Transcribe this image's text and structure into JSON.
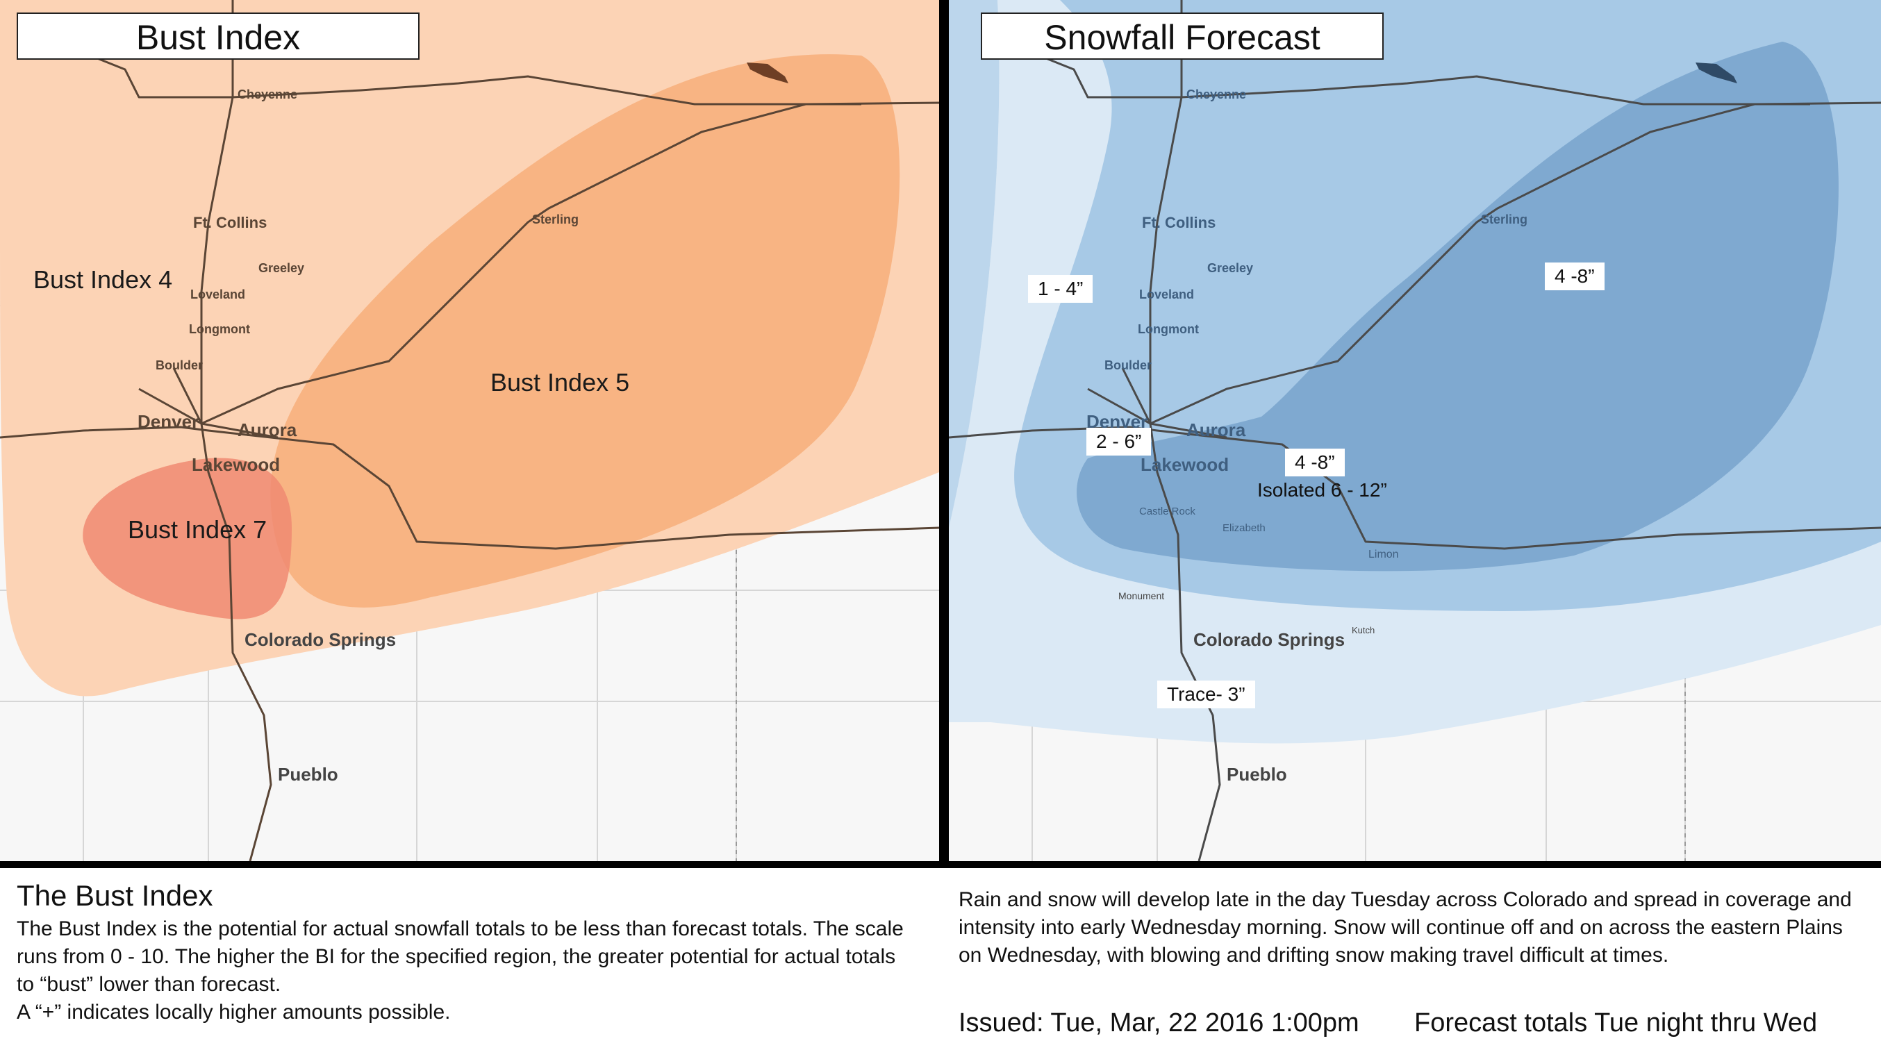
{
  "left_panel": {
    "title": "Bust Index",
    "labels": {
      "bi4": "Bust Index 4",
      "bi5": "Bust Index 5",
      "bi7": "Bust Index 7"
    }
  },
  "right_panel": {
    "title": "Snowfall Forecast",
    "amounts": {
      "a1": "1 - 4”",
      "a2": "4 -8”",
      "a3": "2 - 6”",
      "a4": "4 -8”",
      "a5": "Isolated 6 - 12”",
      "a6": "Trace- 3”"
    }
  },
  "cities": {
    "cheyenne": "Cheyenne",
    "ft_collins": "Ft. Collins",
    "greeley": "Greeley",
    "loveland": "Loveland",
    "longmont": "Longmont",
    "boulder": "Boulder",
    "sterling": "Sterling",
    "denver": "Denver",
    "aurora": "Aurora",
    "lakewood": "Lakewood",
    "colorado_springs": "Colorado Springs",
    "pueblo": "Pueblo",
    "castle_rock": "Castle Rock",
    "elizabeth": "Elizabeth",
    "limon": "Limon",
    "monument": "Monument",
    "kutch": "Kutch"
  },
  "footer": {
    "bi_heading": "The Bust Index",
    "bi_text": "The Bust Index is the potential for actual snowfall totals to be less than forecast totals. The scale runs from 0 - 10. The higher the BI for the specified region, the greater potential for actual totals to “bust” lower than forecast.",
    "bi_note": "A “+” indicates locally higher amounts possible.",
    "forecast_text": "Rain and snow will develop late in the day Tuesday across Colorado and spread in coverage and intensity into early Wednesday morning. Snow will continue off and on across the eastern Plains on Wednesday, with blowing and drifting snow making travel difficult at times.",
    "issued": "Issued: Tue, Mar, 22 2016 1:00pm",
    "totals": "Forecast totals Tue night thru Wed"
  },
  "colors": {
    "bi4": "#fcd3b5",
    "bi5": "#f8b483",
    "bi7": "#f08a72",
    "snow_light": "#dbe9f5",
    "snow_mid": "#a7c9e6",
    "snow_heavy": "#7fa9d0"
  }
}
